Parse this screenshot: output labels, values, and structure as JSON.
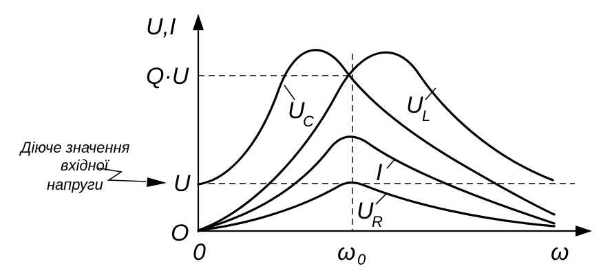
{
  "axes": {
    "y_label": "U,I",
    "x_label": "ω",
    "origin_x": "0",
    "origin_y": "O",
    "resonance_tick": "ω",
    "resonance_sub": "0",
    "level_u": "U",
    "level_qu": "Q·U"
  },
  "curves": {
    "uc": {
      "main": "U",
      "sub": "C"
    },
    "ul": {
      "main": "U",
      "sub": "L"
    },
    "i": {
      "main": "I"
    },
    "ur": {
      "main": "U",
      "sub": "R"
    }
  },
  "annotation": {
    "line1": "Діюче значення",
    "line2": "вхідної",
    "line3": "напруги"
  }
}
